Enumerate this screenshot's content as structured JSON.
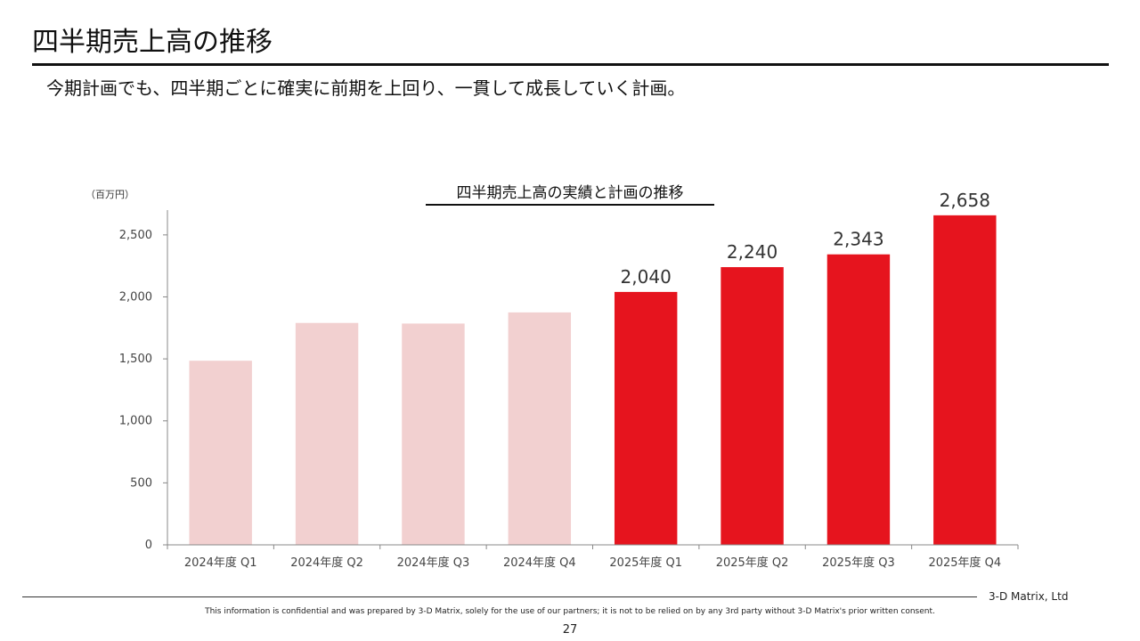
{
  "header": {
    "title": "四半期売上高の推移",
    "subtitle": "今期計画でも、四半期ごとに確実に前期を上回り、一貫して成長していく計画。"
  },
  "chart_data": {
    "type": "bar",
    "title": "四半期売上高の実績と計画の推移",
    "unit_label": "（百万円）",
    "categories": [
      "2024年度 Q1",
      "2024年度 Q2",
      "2024年度 Q3",
      "2024年度 Q4",
      "2025年度 Q1",
      "2025年度 Q2",
      "2025年度 Q3",
      "2025年度 Q4"
    ],
    "values": [
      1485,
      1790,
      1785,
      1875,
      2040,
      2240,
      2343,
      2658
    ],
    "data_labels": [
      "",
      "",
      "",
      "",
      "2,040",
      "2,240",
      "2,343",
      "2,658"
    ],
    "yticks": [
      0,
      500,
      1000,
      1500,
      2000,
      2500
    ],
    "ytick_labels": [
      "0",
      "500",
      "1,000",
      "1,500",
      "2,000",
      "2,500"
    ],
    "ylim": [
      0,
      2700
    ],
    "grid": false,
    "colors": {
      "actual": "#f2d0d0",
      "plan": "#e6141e",
      "axis": "#888888"
    },
    "bar_groups": [
      "actual",
      "actual",
      "actual",
      "actual",
      "plan",
      "plan",
      "plan",
      "plan"
    ]
  },
  "footer": {
    "company": "3-D Matrix, Ltd",
    "confidential": "This information is confidential and was prepared by 3-D Matrix, solely for the use of our partners; it is not to be relied on by any 3rd party without 3-D Matrix's prior written consent.",
    "page_number": "27"
  }
}
